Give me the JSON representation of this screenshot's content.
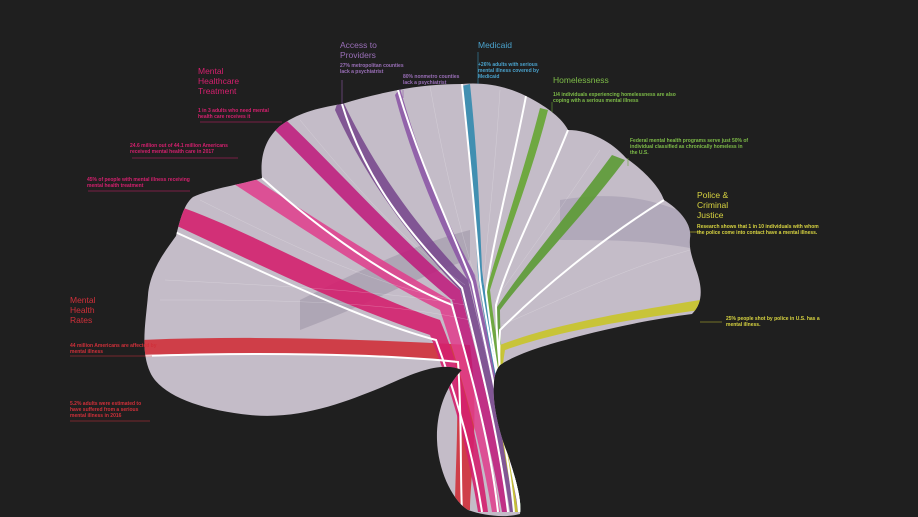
{
  "colors": {
    "background": "#1f1f1f",
    "brain_base": "#c4bcc8",
    "brain_shade": "#8f8698",
    "divider": "#ffffff",
    "mental_health_rates": "#d0303a",
    "treatment": "#d4206e",
    "access": "#7a4a8e",
    "medicaid": "#3a8cb0",
    "homelessness": "#6aa63a",
    "police": "#c8c430"
  },
  "categories": {
    "mental_health_rates": {
      "title_lines": [
        "Mental",
        "Health",
        "Rates"
      ],
      "notes": [
        "44 million Americans are affected by mental illness",
        "5.2% adults were estimated to have suffered from a serious mental illness in 2016"
      ]
    },
    "treatment": {
      "title_lines": [
        "Mental",
        "Healthcare",
        "Treatment"
      ],
      "notes": [
        "1 in 3 adults who need mental health care receives it",
        "24.6 million out of 44.1 million Americans received mental health care in 2017",
        "45% of people with mental illness receiving mental health treatment"
      ]
    },
    "access": {
      "title_lines": [
        "Access to",
        "Providers"
      ],
      "notes": [
        "27% metropolitan counties lack a psychiatrist",
        "80% nonmetro counties lack a psychiatrist"
      ]
    },
    "medicaid": {
      "title_lines": [
        "Medicaid"
      ],
      "notes": [
        "+26% adults with serious mental illness covered by Medicaid"
      ]
    },
    "homelessness": {
      "title_lines": [
        "Homelessness"
      ],
      "notes": [
        "1/4 individuals experiencing homelessness are also coping with a serious mental illness",
        "Federal mental health programs serve just 50% of individual classified as chronically homeless in the U.S."
      ]
    },
    "police": {
      "title_lines": [
        "Police &",
        "Criminal",
        "Justice"
      ],
      "notes": [
        "Research shows that 1 in 10 individuals with whom the police come into contact have a mental illness.",
        "25% people shot by police in U.S. has a mental illness."
      ]
    }
  }
}
